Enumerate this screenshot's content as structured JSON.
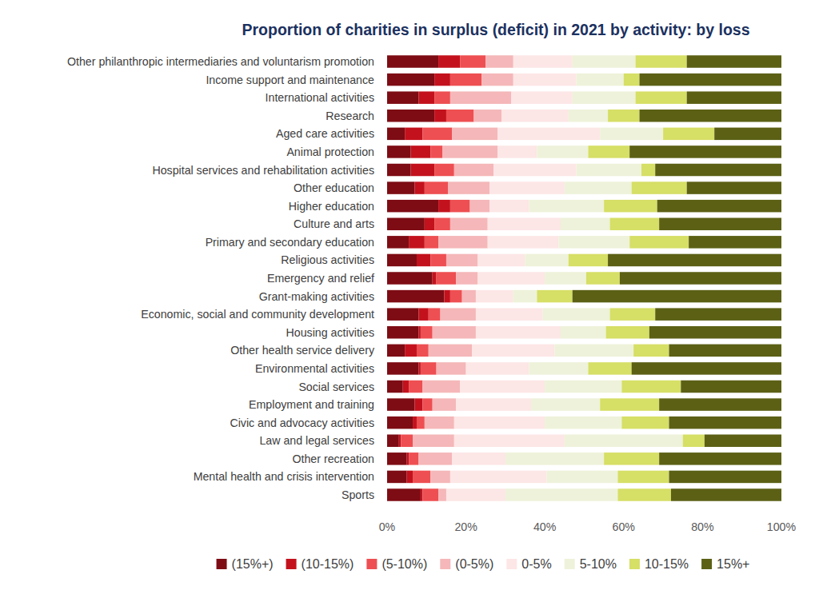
{
  "chart_data": {
    "type": "bar",
    "title": "Proportion of charities in surplus (deficit) in 2021 by activity: by loss",
    "orientation": "horizontal",
    "stacked": true,
    "grid": false,
    "legend": "bottom",
    "categories": [
      "Other philanthropic intermediaries and voluntarism promotion",
      "Income support and maintenance",
      "International activities",
      "Research",
      "Aged care activities",
      "Animal protection",
      "Hospital services and rehabilitation activities",
      "Other education",
      "Higher education",
      "Culture and arts",
      "Primary and secondary education",
      "Religious activities",
      "Emergency and relief",
      "Grant-making activities",
      "Economic, social and community development",
      "Housing activities",
      "Other health service delivery",
      "Environmental activities",
      "Social services",
      "Employment and training",
      "Civic and advocacy activities",
      "Law and legal services",
      "Other recreation",
      "Mental health and crisis intervention",
      "Sports"
    ],
    "xlim": [
      0,
      100
    ],
    "xticks": [
      {
        "value": 0,
        "label": "0%"
      },
      {
        "value": 20,
        "label": "20%"
      },
      {
        "value": 40,
        "label": "40%"
      },
      {
        "value": 60,
        "label": "60%"
      },
      {
        "value": 80,
        "label": "80%"
      },
      {
        "value": 100,
        "label": "100%"
      }
    ],
    "series": [
      {
        "name": "(15%+)",
        "color": "#7d0c14",
        "values": [
          13,
          12,
          8,
          12,
          4.5,
          6,
          6,
          7,
          13,
          9.5,
          5.5,
          7.5,
          11.5,
          14.5,
          8,
          8,
          4.5,
          8,
          4,
          7,
          6.5,
          3,
          5,
          5,
          8.5
        ]
      },
      {
        "name": "(10-15%)",
        "color": "#c3121d",
        "values": [
          5.5,
          4,
          4,
          3,
          4.5,
          5,
          6,
          2.5,
          3,
          2.5,
          4,
          3.5,
          1,
          1.5,
          2.5,
          0.5,
          3,
          0.5,
          1.5,
          2,
          1,
          0.5,
          0.5,
          1.5,
          0.5
        ]
      },
      {
        "name": "(5-10%)",
        "color": "#ee4f52",
        "values": [
          6.5,
          8,
          4,
          7,
          7.5,
          3,
          5,
          6,
          5,
          4,
          3.5,
          4,
          5,
          3,
          3,
          3,
          3,
          4,
          3.5,
          2.5,
          2,
          3,
          2.5,
          4.5,
          4
        ]
      },
      {
        "name": "(0-5%)",
        "color": "#f5b7b9",
        "values": [
          7,
          8,
          15.5,
          7,
          11.5,
          14,
          10,
          10.5,
          5,
          9.5,
          12.5,
          8,
          5.5,
          3.5,
          9,
          11,
          11,
          7.5,
          9.5,
          6,
          7.5,
          10.5,
          8.5,
          5,
          2
        ]
      },
      {
        "name": "0-5%",
        "color": "#fde6e6",
        "values": [
          15,
          16,
          15.5,
          17,
          26,
          10,
          21,
          19,
          10,
          18.5,
          18,
          12,
          17,
          9.5,
          17,
          21.5,
          21,
          16,
          21.5,
          19,
          23,
          28,
          13.5,
          24.5,
          15
        ]
      },
      {
        "name": "5-10%",
        "color": "#eef2da",
        "values": [
          16,
          12,
          16,
          10,
          16,
          13,
          16.5,
          17,
          19,
          12.5,
          18,
          11,
          10.5,
          6,
          17,
          11.5,
          20,
          15,
          19.5,
          17.5,
          19.5,
          30,
          25,
          18,
          28.5
        ]
      },
      {
        "name": "10-15%",
        "color": "#d6df66",
        "values": [
          13,
          4,
          13,
          8,
          13,
          10.5,
          3.5,
          14,
          13.5,
          12.5,
          15,
          10,
          8.5,
          9,
          11.5,
          11,
          9,
          11,
          15,
          15,
          12,
          5.5,
          14,
          13,
          13.5
        ]
      },
      {
        "name": "15%+",
        "color": "#5b6015",
        "values": [
          24,
          36,
          24,
          36,
          17,
          38.5,
          32,
          24,
          31.5,
          31,
          23.5,
          44,
          41,
          53,
          32,
          33.5,
          28.5,
          38,
          25.5,
          31,
          28.5,
          19.5,
          31,
          28.5,
          28
        ]
      }
    ]
  }
}
